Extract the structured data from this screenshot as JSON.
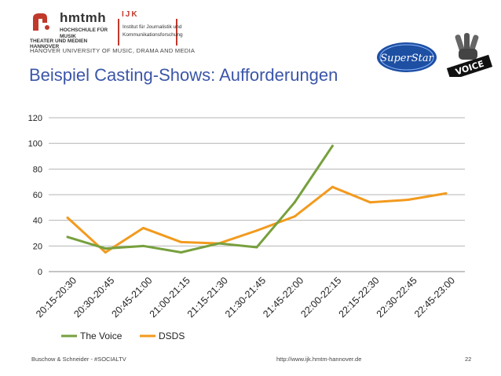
{
  "header": {
    "org_name": "hmtmh",
    "org_sub_line1": "HOCHSCHULE FÜR MUSIK",
    "org_sub_line2": "THEATER UND MEDIEN HANNOVER",
    "ijk_title": "IJK",
    "ijk_line1": "Institut für Journalistik und",
    "ijk_line2": "Kommunikationsforschung",
    "university_line": "HANOVER UNIVERSITY OF MUSIC, DRAMA AND MEDIA",
    "superstar_logo_text": "SuperStar",
    "voice_logo_text": "VOICE"
  },
  "slide": {
    "title": "Beispiel Casting-Shows: Aufforderungen"
  },
  "chart_data": {
    "type": "line",
    "title": "",
    "xlabel": "",
    "ylabel": "",
    "ylim": [
      0,
      120
    ],
    "yticks": [
      0,
      20,
      40,
      60,
      80,
      100,
      120
    ],
    "grid": true,
    "legend_position": "bottom-left",
    "categories": [
      "20:15-20:30",
      "20:30-20:45",
      "20:45-21:00",
      "21:00-21:15",
      "21:15-21:30",
      "21:30-21:45",
      "21:45-22:00",
      "22:00-22:15",
      "22:15-22:30",
      "22:30-22:45",
      "22:45-23:00"
    ],
    "series": [
      {
        "name": "The Voice",
        "color": "#77a03d",
        "values": [
          27,
          18,
          20,
          15,
          22,
          19,
          54,
          98,
          null,
          null,
          null
        ]
      },
      {
        "name": "DSDS",
        "color": "#f29a1e",
        "values": [
          42,
          15,
          34,
          23,
          22,
          32,
          43,
          66,
          54,
          56,
          61
        ]
      }
    ]
  },
  "footer": {
    "left": "Buschow & Schneider - #SOCIALTV",
    "center": "http://www.ijk.hmtm-hannover.de",
    "page_number": "22"
  }
}
